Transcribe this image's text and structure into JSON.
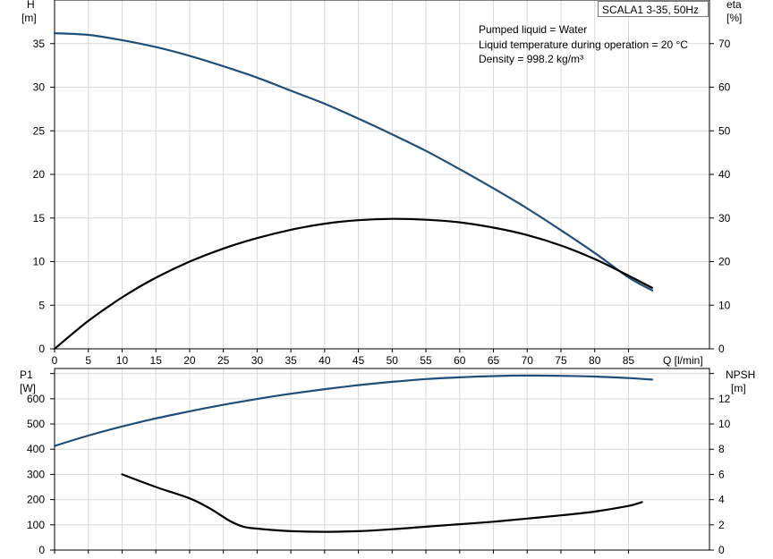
{
  "badge": "SCALA1 3-35, 50Hz",
  "info": {
    "liquid": "Pumped liquid = Water",
    "temperature": "Liquid temperature during operation = 20 °C",
    "density": "Density = 998.2 kg/m³"
  },
  "colors": {
    "blue": "#1f4e79",
    "black": "#000000",
    "grid": "#d9d9d9"
  },
  "chart_data": [
    {
      "type": "line",
      "panel": "head-efficiency",
      "left_axis": {
        "label": "H",
        "unit": "[m]",
        "range": [
          0,
          40
        ],
        "ticks": [
          0,
          5,
          10,
          15,
          20,
          25,
          30,
          35
        ]
      },
      "right_axis": {
        "label": "eta",
        "unit": "[%]",
        "range": [
          0,
          80
        ],
        "ticks": [
          0,
          10,
          20,
          30,
          40,
          50,
          60,
          70
        ]
      },
      "x_axis": {
        "label": "Q [l/min]",
        "range": [
          0,
          97
        ],
        "ticks": [
          0,
          5,
          10,
          15,
          20,
          25,
          30,
          35,
          40,
          45,
          50,
          55,
          60,
          65,
          70,
          75,
          80,
          85
        ]
      },
      "grid": true,
      "series": [
        {
          "axis": "left",
          "color": "#1f4e79",
          "x": [
            0,
            5,
            10,
            15,
            20,
            25,
            30,
            35,
            40,
            45,
            50,
            55,
            60,
            65,
            70,
            75,
            80,
            85,
            88.5
          ],
          "y": [
            36.2,
            36.0,
            35.4,
            34.6,
            33.6,
            32.4,
            31.1,
            29.6,
            28.1,
            26.4,
            24.6,
            22.7,
            20.6,
            18.4,
            16.1,
            13.6,
            11.0,
            8.2,
            6.7
          ]
        },
        {
          "axis": "right",
          "color": "#000000",
          "x": [
            0,
            5,
            10,
            15,
            20,
            25,
            30,
            35,
            40,
            45,
            50,
            55,
            60,
            65,
            70,
            75,
            80,
            85,
            88.5
          ],
          "y": [
            0,
            6.4,
            11.8,
            16.3,
            20.0,
            23.0,
            25.4,
            27.3,
            28.7,
            29.5,
            29.8,
            29.6,
            29.0,
            27.8,
            26.1,
            23.7,
            20.6,
            16.8,
            14.0
          ]
        }
      ]
    },
    {
      "type": "line",
      "panel": "power-npsh",
      "left_axis": {
        "label": "P1",
        "unit": "[W]",
        "range": [
          0,
          720
        ],
        "ticks": [
          0,
          100,
          200,
          300,
          400,
          500,
          600
        ]
      },
      "right_axis": {
        "label": "NPSH",
        "unit": "[m]",
        "range": [
          0,
          14.4
        ],
        "ticks": [
          0,
          2,
          4,
          6,
          8,
          10,
          12
        ]
      },
      "x_axis": {
        "range": [
          0,
          97
        ],
        "ticks": [
          0,
          5,
          10,
          15,
          20,
          25,
          30,
          35,
          40,
          45,
          50,
          55,
          60,
          65,
          70,
          75,
          80,
          85
        ]
      },
      "grid": true,
      "series": [
        {
          "axis": "left",
          "color": "#1f4e79",
          "x": [
            0,
            5,
            10,
            15,
            20,
            25,
            30,
            35,
            40,
            45,
            50,
            55,
            60,
            65,
            70,
            75,
            80,
            85,
            88.5
          ],
          "y": [
            413,
            454,
            490,
            522,
            550,
            576,
            599,
            620,
            638,
            654,
            667,
            678,
            685,
            690,
            692,
            691,
            688,
            682,
            676
          ]
        },
        {
          "axis": "right",
          "color": "#000000",
          "x": [
            10,
            15,
            20,
            23,
            26,
            28,
            30,
            35,
            40,
            45,
            50,
            55,
            60,
            65,
            70,
            75,
            80,
            85,
            87
          ],
          "y": [
            6.0,
            5.0,
            4.1,
            3.3,
            2.3,
            1.85,
            1.7,
            1.5,
            1.45,
            1.5,
            1.65,
            1.85,
            2.05,
            2.25,
            2.5,
            2.75,
            3.05,
            3.5,
            3.8
          ]
        }
      ]
    }
  ]
}
